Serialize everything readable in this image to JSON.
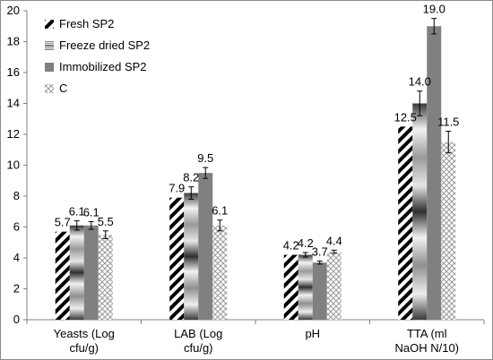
{
  "chart_data": {
    "type": "bar",
    "title": "",
    "xlabel": "",
    "ylabel": "",
    "ylim": [
      0,
      20
    ],
    "ytick_step": 2,
    "grid": false,
    "legend_position": "top-left",
    "categories": [
      [
        "Yeasts (Log",
        "cfu/g)"
      ],
      [
        "LAB (Log",
        "cfu/g)"
      ],
      [
        "pH"
      ],
      [
        "TTA (ml",
        "NaOH N/10)"
      ]
    ],
    "series": [
      {
        "name": "Fresh SP2",
        "pattern": "diagonal-stripes",
        "values": [
          5.7,
          7.9,
          4.2,
          12.5
        ],
        "errors": [
          0.0,
          0.0,
          0.0,
          0.0
        ],
        "labels": [
          "5.7",
          "7.9",
          "4.2",
          "12.5"
        ]
      },
      {
        "name": "Freeze dried SP2",
        "pattern": "gradient-gray",
        "values": [
          6.1,
          8.2,
          4.2,
          14.0
        ],
        "errors": [
          0.3,
          0.4,
          0.15,
          0.8
        ],
        "labels": [
          "6.1",
          "8.2",
          "4.2",
          "14.0"
        ]
      },
      {
        "name": "Immobilized SP2",
        "pattern": "solid-gray",
        "values": [
          6.1,
          9.5,
          3.7,
          19.0
        ],
        "errors": [
          0.25,
          0.35,
          0.1,
          0.5
        ],
        "labels": [
          "6.1",
          "9.5",
          "3.7",
          "19.0"
        ]
      },
      {
        "name": "C",
        "pattern": "dotted-lattice",
        "values": [
          5.5,
          6.1,
          4.4,
          11.5
        ],
        "errors": [
          0.25,
          0.35,
          0.1,
          0.7
        ],
        "labels": [
          "5.5",
          "6.1",
          "4.4",
          "11.5"
        ]
      }
    ],
    "colors": {
      "stripe": "#000000",
      "solid_gray": "#808080",
      "gradient_dark": "#3a3a3a",
      "gradient_light": "#f2f2f2",
      "dot_lattice": "#9a9a9a",
      "axis": "#808080"
    }
  }
}
